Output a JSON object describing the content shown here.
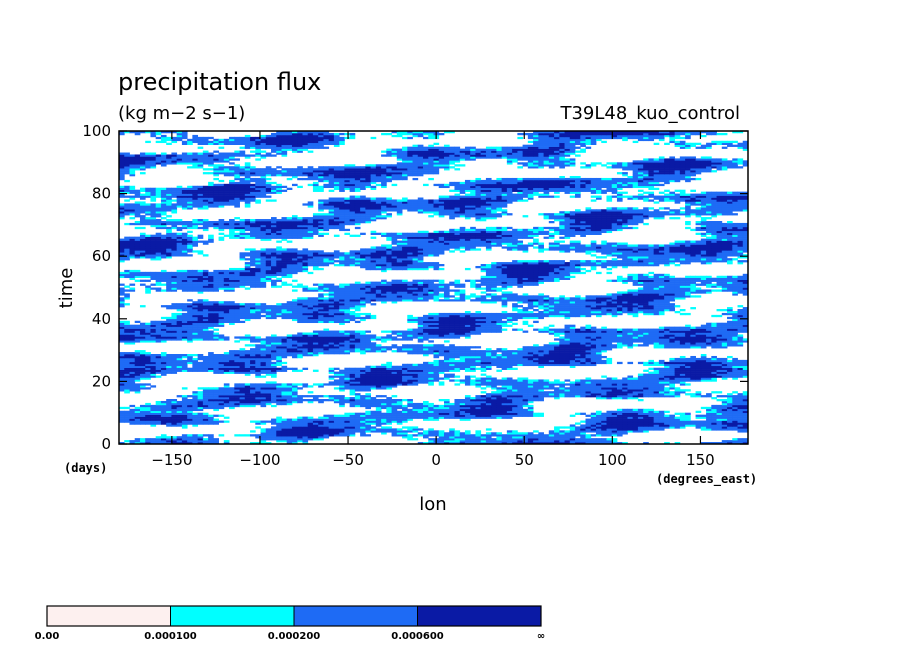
{
  "chart_data": {
    "type": "heatmap",
    "title": "precipitation flux",
    "subtitle": "(kg m−2 s−1)",
    "right_label": "T39L48_kuo_control",
    "xlabel": "lon",
    "xunit": "(degrees_east)",
    "ylabel": "time",
    "yunit": "(days)",
    "xlim": [
      -180,
      177
    ],
    "ylim": [
      0,
      100
    ],
    "xticks": [
      -150,
      -100,
      -50,
      0,
      50,
      100,
      150
    ],
    "yticks": [
      0,
      20,
      40,
      60,
      80,
      100
    ],
    "xtick_labels": [
      "−150",
      "−100",
      "−50",
      "0",
      "50",
      "100",
      "150"
    ],
    "ytick_labels": [
      "0",
      "20",
      "40",
      "60",
      "80",
      "100"
    ],
    "levels": [
      0.0,
      0.0001,
      0.0002,
      0.0006
    ],
    "level_labels": [
      "0.00",
      "0.000100",
      "0.000200",
      "0.000600",
      "∞"
    ],
    "colors": [
      "#fdf0ef",
      "#00ffff",
      "#1e6bf5",
      "#0a1aa5"
    ],
    "background": "#ffffff",
    "pattern": "banded precipitation streaks tilted eastward with time over 0–100 days",
    "colorbar": {
      "orientation": "horizontal",
      "position": "bottom"
    }
  }
}
